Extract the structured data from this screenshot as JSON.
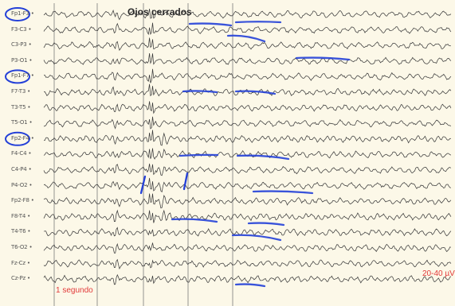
{
  "title": "Ojos cerrados",
  "channels": [
    "Fp1-F3",
    "F3-C3",
    "C3-P3",
    "P3-O1",
    "Fp1-F7",
    "F7-T3",
    "T3-T5",
    "T5-O1",
    "Fp2-F4",
    "F4-C4",
    "C4-P4",
    "P4-O2",
    "Fp2-F8",
    "F8-T4",
    "T4-T6",
    "T6-O2",
    "Fz-Cz",
    "Cz-Pz"
  ],
  "circled_channels": [
    "Fp1-F3",
    "Fp1-F7",
    "Fp2-F4"
  ],
  "time_scale_label": "1 segundo",
  "amplitude_scale_label": "20-40 µV",
  "colors": {
    "paper": "#fcf8e8",
    "trace": "#3c3c3c",
    "annotation": "#2440d8",
    "scale_text": "#e23a3a"
  }
}
